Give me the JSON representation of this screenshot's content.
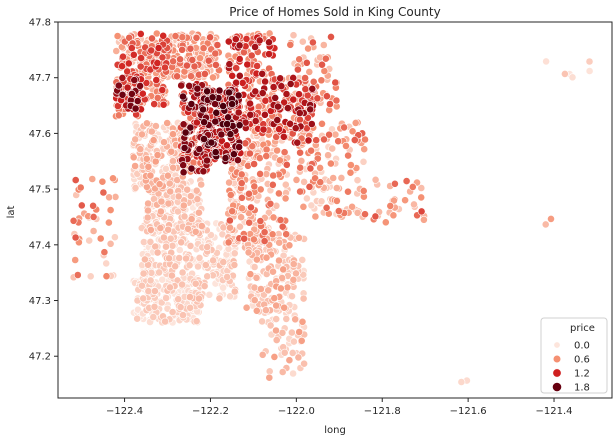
{
  "chart_data": {
    "type": "scatter",
    "title": "Price of Homes Sold in King County",
    "xlabel": "long",
    "ylabel": "lat",
    "xlim": [
      -122.555,
      -121.265
    ],
    "ylim": [
      47.125,
      47.8
    ],
    "xticks": [
      -122.4,
      -122.2,
      -122.0,
      -121.8,
      -121.6,
      -121.4
    ],
    "xtick_labels": [
      "−122.4",
      "−122.2",
      "−122.0",
      "−121.8",
      "−121.6",
      "−121.4"
    ],
    "yticks": [
      47.2,
      47.3,
      47.4,
      47.5,
      47.6,
      47.7,
      47.8
    ],
    "ytick_labels": [
      "47.2",
      "47.3",
      "47.4",
      "47.5",
      "47.6",
      "47.7",
      "47.8"
    ],
    "grid": false,
    "colormap": "Reds",
    "marker_edge_color": "#ffffff",
    "legend": {
      "title": "price",
      "placement": "lower-right",
      "entries": [
        {
          "label": "0.0",
          "value": 0.0,
          "color": "#fde5dc"
        },
        {
          "label": "0.6",
          "value": 0.6,
          "color": "#f59072"
        },
        {
          "label": "1.2",
          "value": 1.2,
          "color": "#cf1f1f"
        },
        {
          "label": "1.8",
          "value": 1.8,
          "color": "#670010"
        }
      ]
    },
    "price_scale_max": 2.0,
    "point_clusters": [
      {
        "lon": [
          -122.42,
          -122.3
        ],
        "lat": [
          47.65,
          47.78
        ],
        "n": 260,
        "price": [
          0.2,
          1.2
        ]
      },
      {
        "lon": [
          -122.42,
          -122.36
        ],
        "lat": [
          47.63,
          47.7
        ],
        "n": 60,
        "price": [
          0.6,
          1.8
        ]
      },
      {
        "lon": [
          -122.3,
          -122.18
        ],
        "lat": [
          47.7,
          47.78
        ],
        "n": 180,
        "price": [
          0.2,
          0.9
        ]
      },
      {
        "lon": [
          -122.27,
          -122.2
        ],
        "lat": [
          47.53,
          47.69
        ],
        "n": 190,
        "price": [
          0.6,
          1.9
        ]
      },
      {
        "lon": [
          -122.22,
          -122.13
        ],
        "lat": [
          47.55,
          47.68
        ],
        "n": 200,
        "price": [
          0.8,
          2.0
        ]
      },
      {
        "lon": [
          -122.16,
          -122.05
        ],
        "lat": [
          47.6,
          47.78
        ],
        "n": 200,
        "price": [
          0.4,
          1.5
        ]
      },
      {
        "lon": [
          -122.06,
          -121.96
        ],
        "lat": [
          47.58,
          47.7
        ],
        "n": 130,
        "price": [
          0.4,
          1.6
        ]
      },
      {
        "lon": [
          -122.02,
          -121.9
        ],
        "lat": [
          47.64,
          47.78
        ],
        "n": 70,
        "price": [
          0.2,
          1.0
        ]
      },
      {
        "lon": [
          -122.38,
          -122.25
        ],
        "lat": [
          47.5,
          47.62
        ],
        "n": 200,
        "price": [
          0.05,
          0.5
        ]
      },
      {
        "lon": [
          -122.35,
          -122.22
        ],
        "lat": [
          47.42,
          47.52
        ],
        "n": 180,
        "price": [
          0.0,
          0.4
        ]
      },
      {
        "lon": [
          -122.36,
          -122.14
        ],
        "lat": [
          47.3,
          47.44
        ],
        "n": 320,
        "price": [
          0.0,
          0.3
        ]
      },
      {
        "lon": [
          -122.38,
          -122.22
        ],
        "lat": [
          47.26,
          47.34
        ],
        "n": 160,
        "price": [
          0.0,
          0.25
        ]
      },
      {
        "lon": [
          -122.16,
          -122.02
        ],
        "lat": [
          47.4,
          47.6
        ],
        "n": 220,
        "price": [
          0.1,
          0.9
        ]
      },
      {
        "lon": [
          -122.12,
          -121.98
        ],
        "lat": [
          47.28,
          47.42
        ],
        "n": 160,
        "price": [
          0.05,
          0.5
        ]
      },
      {
        "lon": [
          -122.0,
          -121.84
        ],
        "lat": [
          47.45,
          47.62
        ],
        "n": 130,
        "price": [
          0.1,
          0.9
        ]
      },
      {
        "lon": [
          -122.08,
          -121.98
        ],
        "lat": [
          47.16,
          47.3
        ],
        "n": 60,
        "price": [
          0.05,
          0.5
        ]
      },
      {
        "lon": [
          -122.52,
          -122.42
        ],
        "lat": [
          47.34,
          47.52
        ],
        "n": 45,
        "price": [
          0.1,
          0.9
        ]
      },
      {
        "lon": [
          -121.82,
          -121.7
        ],
        "lat": [
          47.44,
          47.52
        ],
        "n": 30,
        "price": [
          0.2,
          1.0
        ]
      },
      {
        "lon": [
          -121.42,
          -121.3
        ],
        "lat": [
          47.7,
          47.73
        ],
        "n": 6,
        "price": [
          0.0,
          0.3
        ]
      },
      {
        "lon": [
          -121.65,
          -121.6
        ],
        "lat": [
          47.15,
          47.17
        ],
        "n": 2,
        "price": [
          0.0,
          0.2
        ]
      },
      {
        "lon": [
          -121.42,
          -121.38
        ],
        "lat": [
          47.42,
          47.45
        ],
        "n": 2,
        "price": [
          0.3,
          0.6
        ]
      }
    ]
  }
}
